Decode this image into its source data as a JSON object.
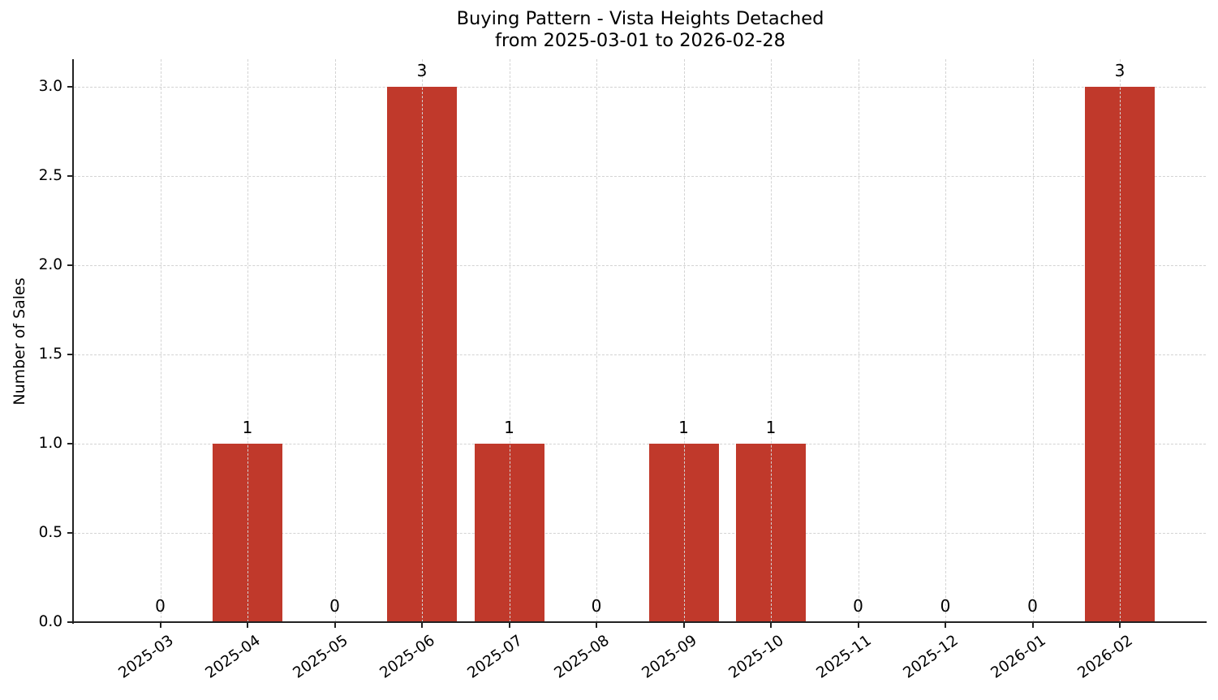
{
  "chart_data": {
    "type": "bar",
    "title": "Buying Pattern - Vista Heights Detached",
    "subtitle": "from 2025-03-01 to 2026-02-28",
    "xlabel": "",
    "ylabel": "Number of Sales",
    "categories": [
      "2025-03",
      "2025-04",
      "2025-05",
      "2025-06",
      "2025-07",
      "2025-08",
      "2025-09",
      "2025-10",
      "2025-11",
      "2025-12",
      "2026-01",
      "2026-02"
    ],
    "values": [
      0,
      1,
      0,
      3,
      1,
      0,
      1,
      1,
      0,
      0,
      0,
      3
    ],
    "data_labels": [
      "0",
      "1",
      "0",
      "3",
      "1",
      "0",
      "1",
      "1",
      "0",
      "0",
      "0",
      "3"
    ],
    "ylim": [
      0,
      3.15
    ],
    "yticks": [
      "0.0",
      "0.5",
      "1.0",
      "1.5",
      "2.0",
      "2.5",
      "3.0"
    ],
    "grid": true,
    "legend": null,
    "bar_color": "#c0392b"
  }
}
